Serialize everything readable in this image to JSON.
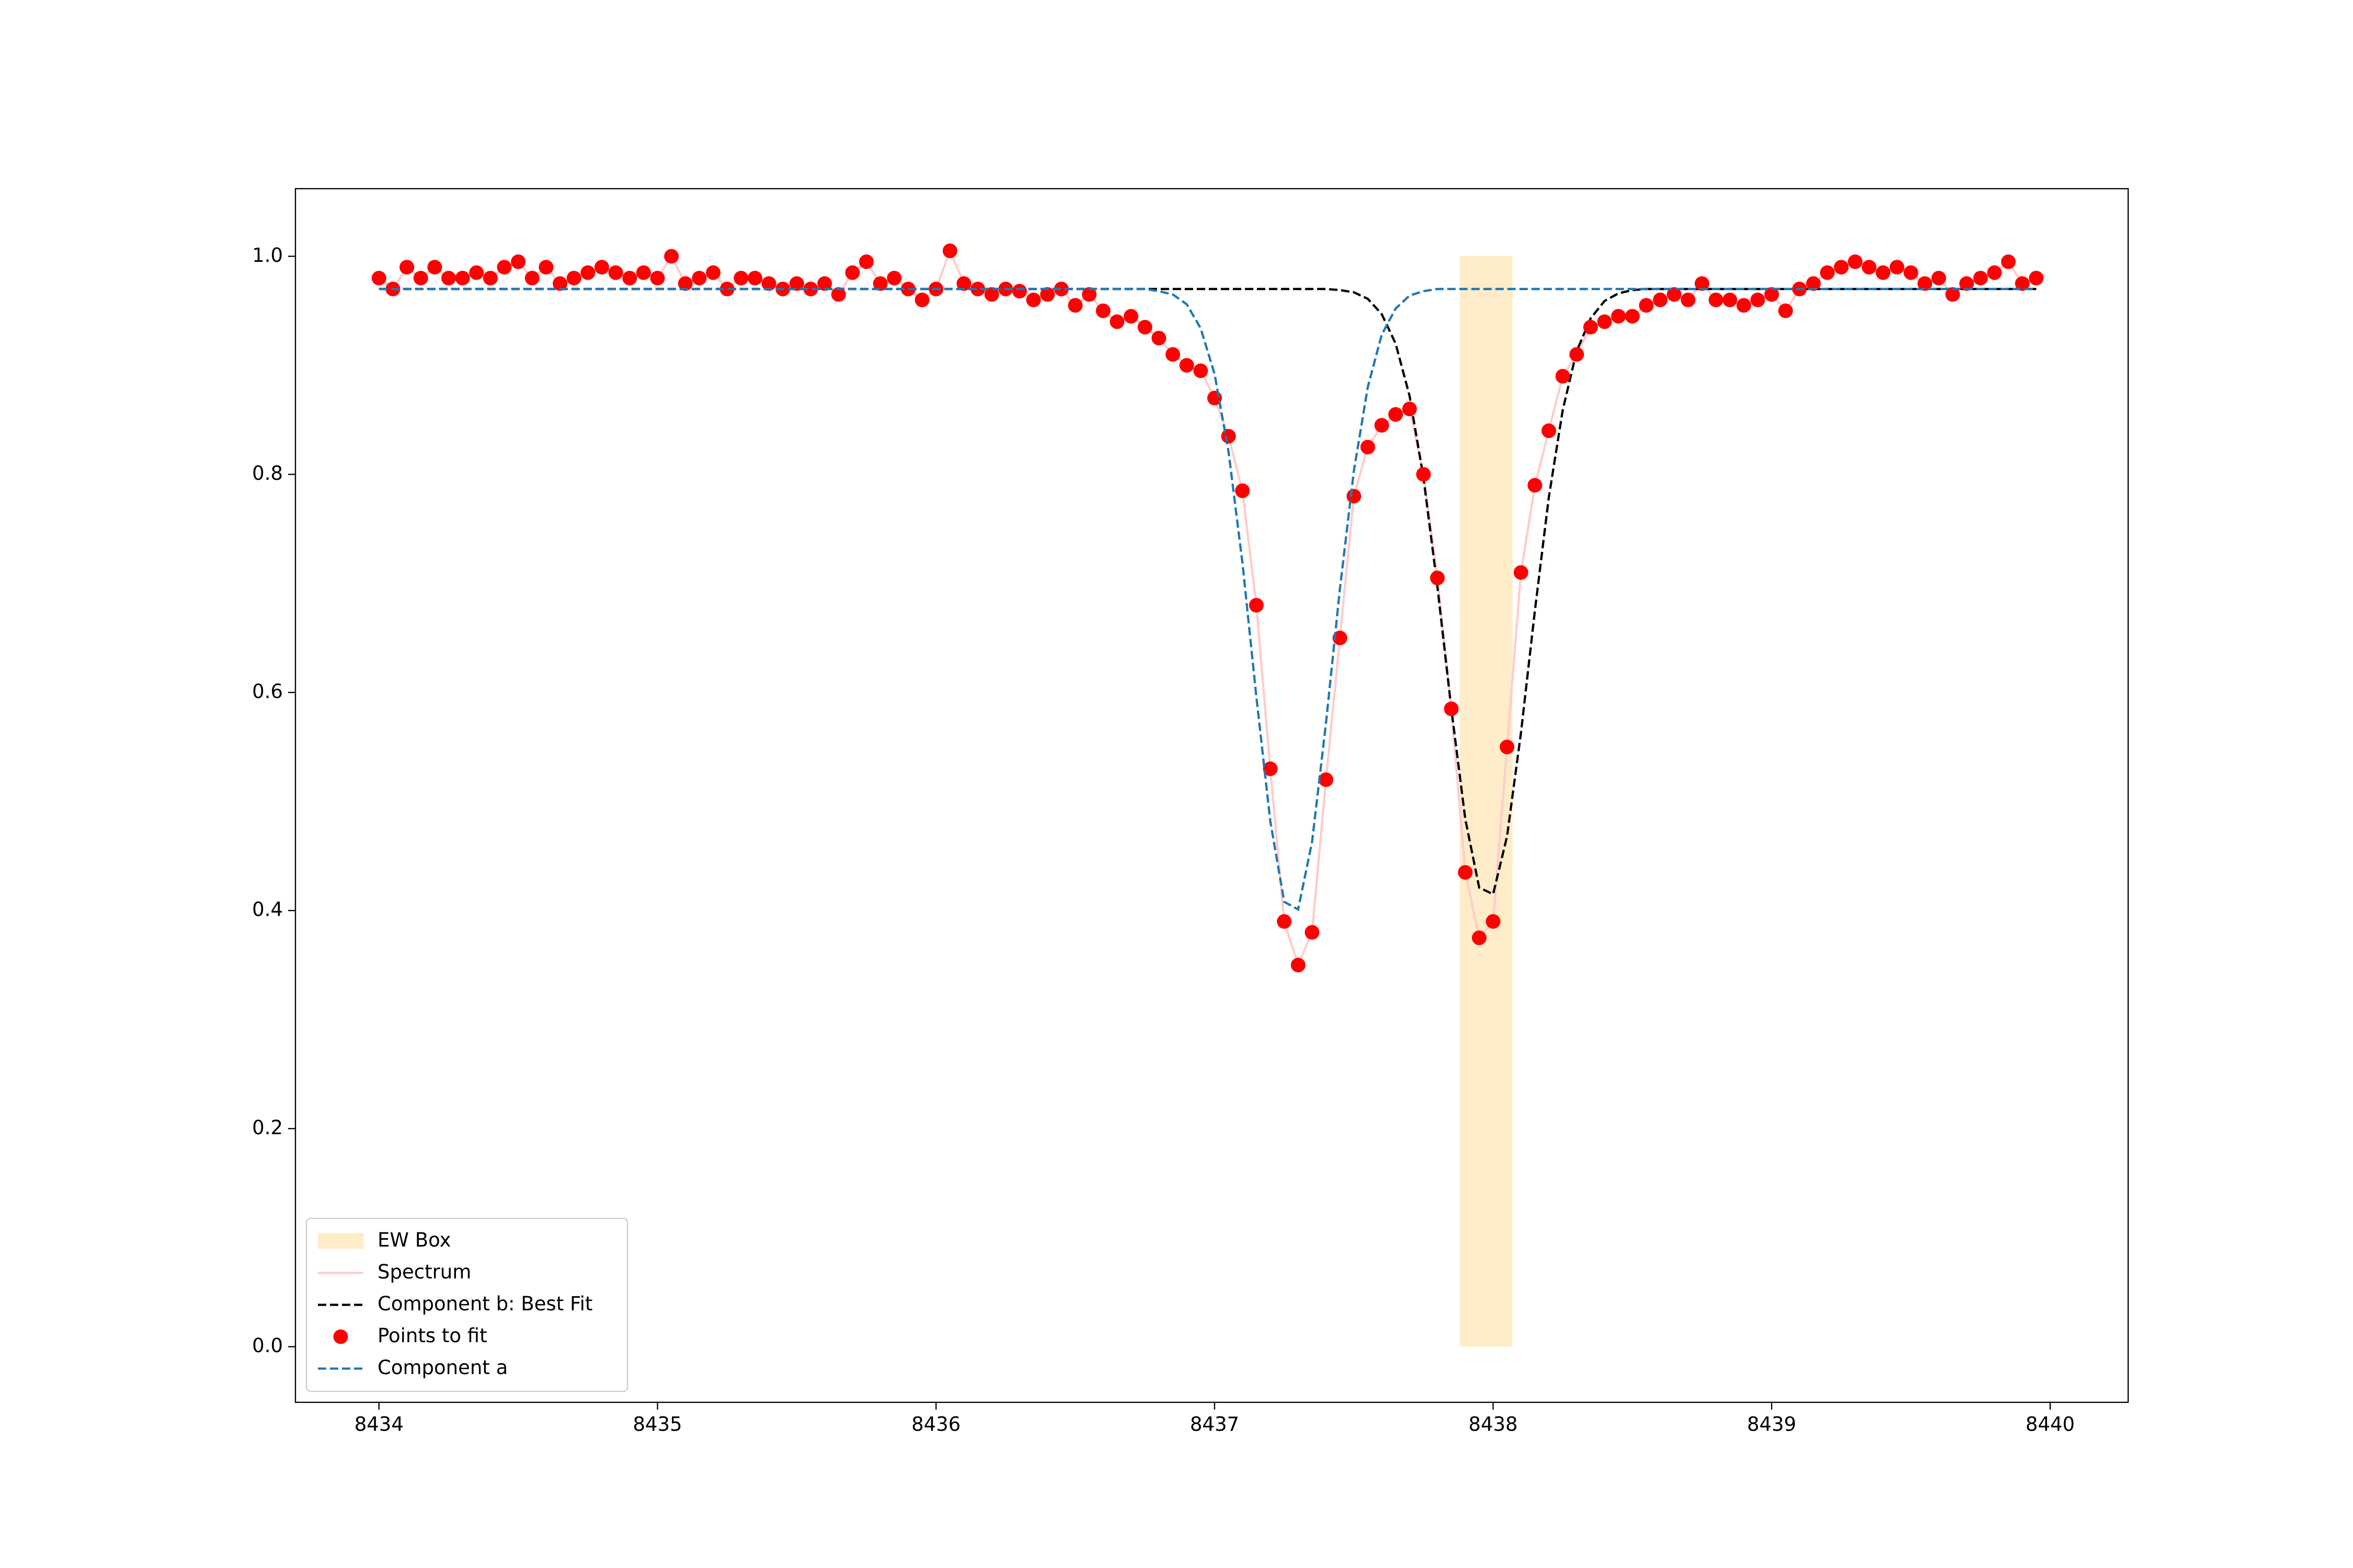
{
  "chart_data": {
    "type": "line",
    "legend": "lower left",
    "grid": false,
    "xlim": [
      8433.7,
      8440.28
    ],
    "ylim": [
      -0.051,
      1.062
    ],
    "xticks": [
      8434,
      8435,
      8436,
      8437,
      8438,
      8439,
      8440
    ],
    "yticks": [
      {
        "value": 0,
        "label": "0.0"
      },
      0.2,
      0.4,
      0.6,
      0.8,
      {
        "value": 1,
        "label": "1.0"
      }
    ],
    "x": [
      8434.0,
      8434.05,
      8434.1,
      8434.15,
      8434.2,
      8434.25,
      8434.3,
      8434.35,
      8434.4,
      8434.45,
      8434.5,
      8434.55,
      8434.6,
      8434.65,
      8434.7,
      8434.75,
      8434.8,
      8434.85,
      8434.9,
      8434.95,
      8435.0,
      8435.05,
      8435.1,
      8435.15,
      8435.2,
      8435.25,
      8435.3,
      8435.35,
      8435.4,
      8435.45,
      8435.5,
      8435.55,
      8435.6,
      8435.65,
      8435.7,
      8435.75,
      8435.8,
      8435.85,
      8435.9,
      8435.95,
      8436.0,
      8436.05,
      8436.1,
      8436.15,
      8436.2,
      8436.25,
      8436.3,
      8436.35,
      8436.4,
      8436.45,
      8436.5,
      8436.55,
      8436.6,
      8436.65,
      8436.7,
      8436.75,
      8436.8,
      8436.85,
      8436.9,
      8436.95,
      8437.0,
      8437.05,
      8437.1,
      8437.15,
      8437.2,
      8437.25,
      8437.3,
      8437.35,
      8437.4,
      8437.45,
      8437.5,
      8437.55,
      8437.6,
      8437.65,
      8437.7,
      8437.75,
      8437.8,
      8437.85,
      8437.9,
      8437.95,
      8438.0,
      8438.05,
      8438.1,
      8438.15,
      8438.2,
      8438.25,
      8438.3,
      8438.35,
      8438.4,
      8438.45,
      8438.5,
      8438.55,
      8438.6,
      8438.65,
      8438.7,
      8438.75,
      8438.8,
      8438.85,
      8438.9,
      8438.95,
      8439.0,
      8439.05,
      8439.1,
      8439.15,
      8439.2,
      8439.25,
      8439.3,
      8439.35,
      8439.4,
      8439.45,
      8439.5,
      8439.55,
      8439.6,
      8439.65,
      8439.7,
      8439.75,
      8439.8,
      8439.85,
      8439.9,
      8439.95
    ],
    "series": [
      {
        "name": "EW Box",
        "style": "band",
        "color": "#ffecc8",
        "x": [
          8437.88,
          8438.07
        ],
        "values": [
          0,
          1.0
        ]
      },
      {
        "name": "Spectrum",
        "style": "line",
        "color": "#ffcccc",
        "dash": false,
        "values": [
          0.98,
          0.97,
          0.99,
          0.98,
          0.99,
          0.98,
          0.98,
          0.985,
          0.98,
          0.99,
          0.995,
          0.98,
          0.99,
          0.975,
          0.98,
          0.985,
          0.99,
          0.985,
          0.98,
          0.985,
          0.98,
          1.0,
          0.975,
          0.98,
          0.985,
          0.97,
          0.98,
          0.98,
          0.975,
          0.97,
          0.975,
          0.97,
          0.975,
          0.965,
          0.985,
          0.995,
          0.975,
          0.98,
          0.97,
          0.96,
          0.97,
          1.005,
          0.975,
          0.97,
          0.965,
          0.97,
          0.968,
          0.96,
          0.965,
          0.97,
          0.955,
          0.965,
          0.95,
          0.94,
          0.945,
          0.935,
          0.925,
          0.91,
          0.9,
          0.895,
          0.87,
          0.835,
          0.785,
          0.68,
          0.53,
          0.39,
          0.35,
          0.38,
          0.52,
          0.65,
          0.78,
          0.825,
          0.845,
          0.855,
          0.86,
          0.8,
          0.705,
          0.585,
          0.435,
          0.375,
          0.39,
          0.55,
          0.71,
          0.79,
          0.84,
          0.89,
          0.91,
          0.935,
          0.94,
          0.945,
          0.945,
          0.955,
          0.96,
          0.965,
          0.96,
          0.975,
          0.96,
          0.96,
          0.955,
          0.96,
          0.965,
          0.95,
          0.97,
          0.975,
          0.985,
          0.99,
          0.995,
          0.99,
          0.985,
          0.99,
          0.985,
          0.975,
          0.98,
          0.965,
          0.975,
          0.98,
          0.985,
          0.995,
          0.975,
          0.98
        ]
      },
      {
        "name": "Component b: Best Fit",
        "style": "line",
        "color": "#000000",
        "dash": true,
        "values": [
          0.97,
          0.97,
          0.97,
          0.97,
          0.97,
          0.97,
          0.97,
          0.97,
          0.97,
          0.97,
          0.97,
          0.97,
          0.97,
          0.97,
          0.97,
          0.97,
          0.97,
          0.97,
          0.97,
          0.97,
          0.97,
          0.97,
          0.97,
          0.97,
          0.97,
          0.97,
          0.97,
          0.97,
          0.97,
          0.97,
          0.97,
          0.97,
          0.97,
          0.97,
          0.97,
          0.97,
          0.97,
          0.97,
          0.97,
          0.97,
          0.97,
          0.97,
          0.97,
          0.97,
          0.97,
          0.97,
          0.97,
          0.97,
          0.97,
          0.97,
          0.97,
          0.97,
          0.97,
          0.97,
          0.97,
          0.97,
          0.97,
          0.97,
          0.97,
          0.97,
          0.97,
          0.97,
          0.97,
          0.97,
          0.97,
          0.97,
          0.97,
          0.97,
          0.97,
          0.969,
          0.967,
          0.961,
          0.947,
          0.92,
          0.872,
          0.797,
          0.697,
          0.585,
          0.484,
          0.421,
          0.415,
          0.468,
          0.563,
          0.675,
          0.779,
          0.859,
          0.913,
          0.943,
          0.959,
          0.966,
          0.969,
          0.97,
          0.97,
          0.97,
          0.97,
          0.97,
          0.97,
          0.97,
          0.97,
          0.97,
          0.97,
          0.97,
          0.97,
          0.97,
          0.97,
          0.97,
          0.97,
          0.97,
          0.97,
          0.97,
          0.97,
          0.97,
          0.97,
          0.97,
          0.97,
          0.97,
          0.97,
          0.97,
          0.97,
          0.97
        ]
      },
      {
        "name": "Points to fit",
        "style": "scatter",
        "color": "#ff0000",
        "values": [
          0.98,
          0.97,
          0.99,
          0.98,
          0.99,
          0.98,
          0.98,
          0.985,
          0.98,
          0.99,
          0.995,
          0.98,
          0.99,
          0.975,
          0.98,
          0.985,
          0.99,
          0.985,
          0.98,
          0.985,
          0.98,
          1.0,
          0.975,
          0.98,
          0.985,
          0.97,
          0.98,
          0.98,
          0.975,
          0.97,
          0.975,
          0.97,
          0.975,
          0.965,
          0.985,
          0.995,
          0.975,
          0.98,
          0.97,
          0.96,
          0.97,
          1.005,
          0.975,
          0.97,
          0.965,
          0.97,
          0.968,
          0.96,
          0.965,
          0.97,
          0.955,
          0.965,
          0.95,
          0.94,
          0.945,
          0.935,
          0.925,
          0.91,
          0.9,
          0.895,
          0.87,
          0.835,
          0.785,
          0.68,
          0.53,
          0.39,
          0.35,
          0.38,
          0.52,
          0.65,
          0.78,
          0.825,
          0.845,
          0.855,
          0.86,
          0.8,
          0.705,
          0.585,
          0.435,
          0.375,
          0.39,
          0.55,
          0.71,
          0.79,
          0.84,
          0.89,
          0.91,
          0.935,
          0.94,
          0.945,
          0.945,
          0.955,
          0.96,
          0.965,
          0.96,
          0.975,
          0.96,
          0.96,
          0.955,
          0.96,
          0.965,
          0.95,
          0.97,
          0.975,
          0.985,
          0.99,
          0.995,
          0.99,
          0.985,
          0.99,
          0.985,
          0.975,
          0.98,
          0.965,
          0.975,
          0.98,
          0.985,
          0.995,
          0.975,
          0.98
        ]
      },
      {
        "name": "Component a",
        "style": "line",
        "color": "#1f77b4",
        "dash": true,
        "values": [
          0.97,
          0.97,
          0.97,
          0.97,
          0.97,
          0.97,
          0.97,
          0.97,
          0.97,
          0.97,
          0.97,
          0.97,
          0.97,
          0.97,
          0.97,
          0.97,
          0.97,
          0.97,
          0.97,
          0.97,
          0.97,
          0.97,
          0.97,
          0.97,
          0.97,
          0.97,
          0.97,
          0.97,
          0.97,
          0.97,
          0.97,
          0.97,
          0.97,
          0.97,
          0.97,
          0.97,
          0.97,
          0.97,
          0.97,
          0.97,
          0.97,
          0.97,
          0.97,
          0.97,
          0.97,
          0.97,
          0.97,
          0.97,
          0.97,
          0.97,
          0.97,
          0.97,
          0.97,
          0.97,
          0.97,
          0.97,
          0.968,
          0.965,
          0.956,
          0.934,
          0.892,
          0.821,
          0.719,
          0.596,
          0.482,
          0.408,
          0.401,
          0.463,
          0.572,
          0.695,
          0.803,
          0.88,
          0.928,
          0.952,
          0.964,
          0.968,
          0.97,
          0.97,
          0.97,
          0.97,
          0.97,
          0.97,
          0.97,
          0.97,
          0.97,
          0.97,
          0.97,
          0.97,
          0.97,
          0.97,
          0.97,
          0.97,
          0.97,
          0.97,
          0.97,
          0.97,
          0.97,
          0.97,
          0.97,
          0.97,
          0.97,
          0.97,
          0.97,
          0.97,
          0.97,
          0.97,
          0.97,
          0.97,
          0.97,
          0.97,
          0.97,
          0.97,
          0.97,
          0.97,
          0.97,
          0.97,
          0.97,
          0.97,
          0.97,
          0.97
        ]
      }
    ]
  }
}
